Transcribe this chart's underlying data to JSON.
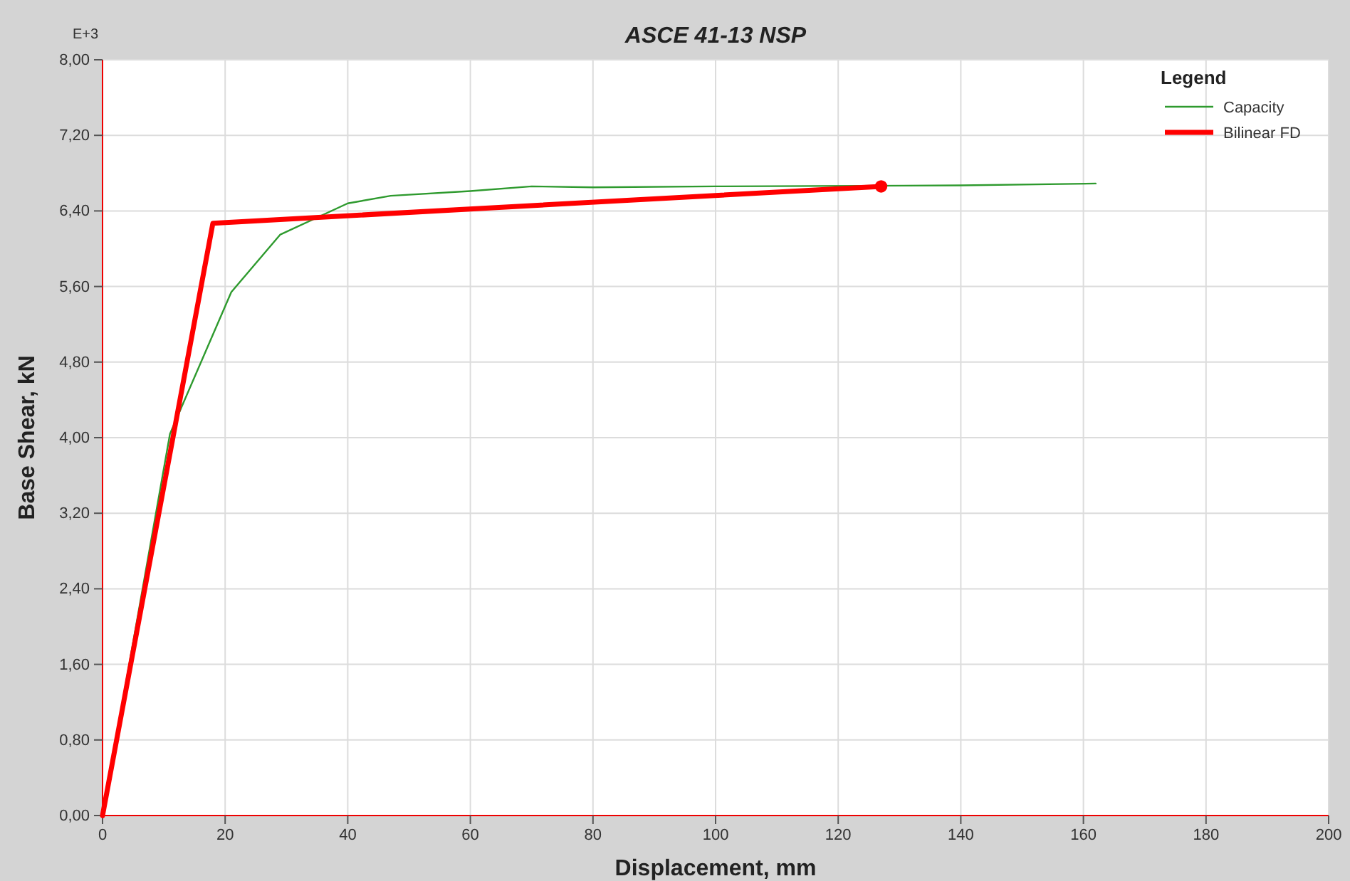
{
  "chart_data": {
    "type": "line",
    "title": "ASCE 41-13 NSP",
    "xlabel": "Displacement, mm",
    "ylabel": "Base Shear, kN",
    "legend_title": "Legend",
    "annotations": [
      "E+3"
    ],
    "xlim": [
      0,
      200
    ],
    "xticks": [
      0,
      20,
      40,
      60,
      80,
      100,
      120,
      140,
      160,
      180,
      200
    ],
    "ylim": [
      0,
      8
    ],
    "yticks": [
      {
        "value": 0,
        "label": "0,00"
      },
      {
        "value": 0.8,
        "label": "0,80"
      },
      {
        "value": 1.6,
        "label": "1,60"
      },
      {
        "value": 2.4,
        "label": "2,40"
      },
      {
        "value": 3.2,
        "label": "3,20"
      },
      {
        "value": 4,
        "label": "4,00"
      },
      {
        "value": 4.8,
        "label": "4,80"
      },
      {
        "value": 5.6,
        "label": "5,60"
      },
      {
        "value": 6.4,
        "label": "6,40"
      },
      {
        "value": 7.2,
        "label": "7,20"
      },
      {
        "value": 8,
        "label": "8,00"
      }
    ],
    "grid": true,
    "legend": "top right",
    "line_style": "solid",
    "series": [
      {
        "name": "Capacity",
        "color": "#2e9a2e",
        "x": [
          0,
          11,
          21,
          29,
          40,
          47,
          60,
          70,
          80,
          100,
          140,
          162
        ],
        "values": [
          0,
          4.04,
          5.54,
          6.15,
          6.48,
          6.56,
          6.61,
          6.66,
          6.65,
          6.66,
          6.67,
          6.69
        ]
      },
      {
        "name": "Bilinear FD",
        "color": "#ff0000",
        "x": [
          0,
          18,
          127
        ],
        "values": [
          0,
          6.27,
          6.66
        ]
      },
      {
        "type": "scatter",
        "color": "#ff0000",
        "marker": "circle",
        "x": [
          127
        ],
        "values": [
          6.66
        ]
      }
    ]
  }
}
